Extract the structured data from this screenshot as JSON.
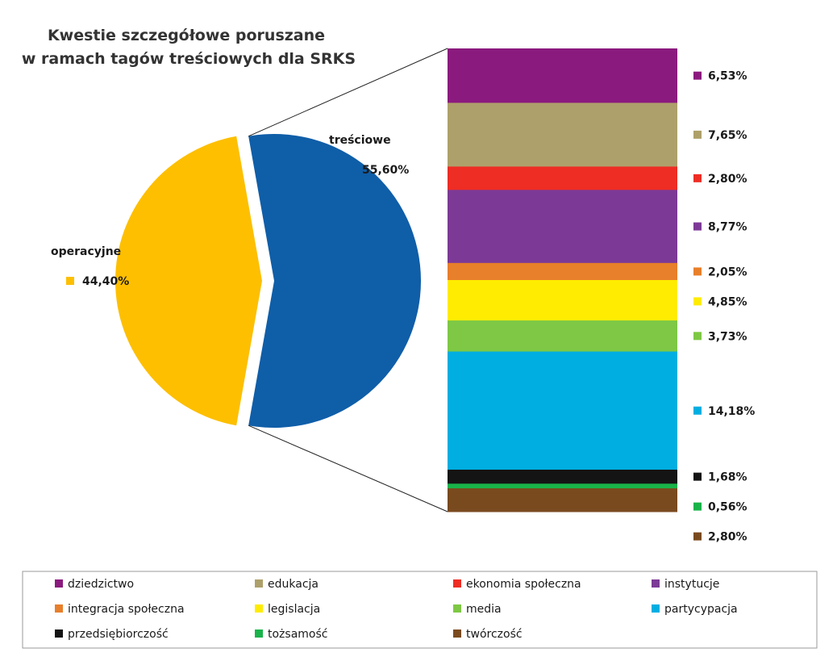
{
  "chart_data": {
    "type": "bar-of-pie",
    "title_lines": [
      "Kwestie szczegółowe poruszane",
      "w ramach tagów treściowych dla SRKS"
    ],
    "pie": {
      "slices": [
        {
          "name": "treściowe",
          "label": "treściowe",
          "value": 55.6,
          "value_label": "55,60%",
          "color": "#0f5ea8",
          "exploded": true
        },
        {
          "name": "operacyjne",
          "label": "operacyjne",
          "value": 44.4,
          "value_label": "44,40%",
          "color": "#fdbf00",
          "exploded": false
        }
      ]
    },
    "bar": {
      "breakdown_of": "treściowe",
      "segments": [
        {
          "name": "dziedzictwo",
          "value": 6.53,
          "value_label": "6,53%",
          "color": "#8b1a7e"
        },
        {
          "name": "edukacja",
          "value": 7.65,
          "value_label": "7,65%",
          "color": "#aea06a"
        },
        {
          "name": "ekonomia społeczna",
          "value": 2.8,
          "value_label": "2,80%",
          "color": "#ee2d24"
        },
        {
          "name": "instytucje",
          "value": 8.77,
          "value_label": "8,77%",
          "color": "#7c3a96"
        },
        {
          "name": "integracja społeczna",
          "value": 2.05,
          "value_label": "2,05%",
          "color": "#e87f2a"
        },
        {
          "name": "legislacja",
          "value": 4.85,
          "value_label": "4,85%",
          "color": "#ffec00"
        },
        {
          "name": "media",
          "value": 3.73,
          "value_label": "3,73%",
          "color": "#7ec845"
        },
        {
          "name": "partycypacja",
          "value": 14.18,
          "value_label": "14,18%",
          "color": "#00aee1"
        },
        {
          "name": "przedsiębiorczość",
          "value": 1.68,
          "value_label": "1,68%",
          "color": "#141414"
        },
        {
          "name": "tożsamość",
          "value": 0.56,
          "value_label": "0,56%",
          "color": "#19b34a"
        },
        {
          "name": "twórczość",
          "value": 2.8,
          "value_label": "2,80%",
          "color": "#7a4a1f"
        }
      ]
    },
    "legend": {
      "position": "bottom",
      "items": [
        "dziedzictwo",
        "edukacja",
        "ekonomia społeczna",
        "instytucje",
        "integracja społeczna",
        "legislacja",
        "media",
        "partycypacja",
        "przedsiębiorczość",
        "tożsamość",
        "twórczość"
      ]
    }
  }
}
